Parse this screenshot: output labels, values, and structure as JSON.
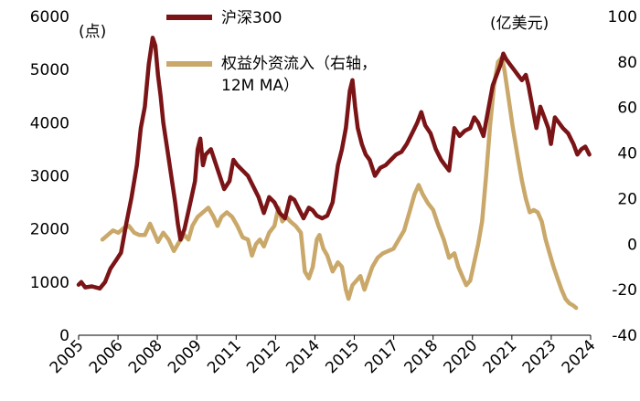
{
  "chart_data": {
    "type": "line",
    "title": "",
    "left_axis": {
      "unit": "(点)",
      "ylim": [
        0,
        6000
      ],
      "ticks": [
        "0",
        "1000",
        "2000",
        "3000",
        "4000",
        "5000",
        "6000"
      ]
    },
    "right_axis": {
      "unit": "(亿美元)",
      "ylim": [
        -40,
        100
      ],
      "ticks": [
        "-40",
        "-20",
        "0",
        "20",
        "40",
        "60",
        "80",
        "100"
      ]
    },
    "x_axis": {
      "ticks": [
        "2005",
        "2006",
        "2008",
        "2009",
        "2011",
        "2012",
        "2014",
        "2015",
        "2017",
        "2018",
        "2020",
        "2021",
        "2023",
        "2024"
      ]
    },
    "legend": {
      "placement": "top-center"
    },
    "series": [
      {
        "name": "沪深300",
        "axis": "left",
        "color": "#7b1416",
        "points": [
          [
            2005.0,
            950
          ],
          [
            2005.1,
            1000
          ],
          [
            2005.25,
            900
          ],
          [
            2005.5,
            920
          ],
          [
            2005.8,
            880
          ],
          [
            2006.0,
            1000
          ],
          [
            2006.2,
            1250
          ],
          [
            2006.4,
            1400
          ],
          [
            2006.6,
            1550
          ],
          [
            2006.8,
            2100
          ],
          [
            2007.0,
            2600
          ],
          [
            2007.2,
            3200
          ],
          [
            2007.35,
            3900
          ],
          [
            2007.5,
            4300
          ],
          [
            2007.65,
            5100
          ],
          [
            2007.8,
            5600
          ],
          [
            2007.9,
            5450
          ],
          [
            2008.0,
            4900
          ],
          [
            2008.1,
            4500
          ],
          [
            2008.2,
            4000
          ],
          [
            2008.35,
            3500
          ],
          [
            2008.5,
            3000
          ],
          [
            2008.65,
            2500
          ],
          [
            2008.75,
            2100
          ],
          [
            2008.85,
            1800
          ],
          [
            2009.0,
            2000
          ],
          [
            2009.2,
            2450
          ],
          [
            2009.4,
            2900
          ],
          [
            2009.5,
            3500
          ],
          [
            2009.6,
            3700
          ],
          [
            2009.7,
            3200
          ],
          [
            2009.8,
            3400
          ],
          [
            2010.0,
            3500
          ],
          [
            2010.2,
            3200
          ],
          [
            2010.4,
            2900
          ],
          [
            2010.5,
            2750
          ],
          [
            2010.7,
            2900
          ],
          [
            2010.85,
            3300
          ],
          [
            2011.0,
            3200
          ],
          [
            2011.2,
            3100
          ],
          [
            2011.4,
            3000
          ],
          [
            2011.6,
            2800
          ],
          [
            2011.8,
            2600
          ],
          [
            2012.0,
            2300
          ],
          [
            2012.2,
            2600
          ],
          [
            2012.4,
            2500
          ],
          [
            2012.6,
            2300
          ],
          [
            2012.8,
            2200
          ],
          [
            2013.0,
            2600
          ],
          [
            2013.15,
            2550
          ],
          [
            2013.3,
            2400
          ],
          [
            2013.5,
            2200
          ],
          [
            2013.7,
            2400
          ],
          [
            2013.85,
            2350
          ],
          [
            2014.0,
            2250
          ],
          [
            2014.2,
            2200
          ],
          [
            2014.4,
            2250
          ],
          [
            2014.6,
            2500
          ],
          [
            2014.8,
            3200
          ],
          [
            2014.95,
            3500
          ],
          [
            2015.1,
            3900
          ],
          [
            2015.25,
            4600
          ],
          [
            2015.35,
            4800
          ],
          [
            2015.45,
            4300
          ],
          [
            2015.55,
            3900
          ],
          [
            2015.7,
            3600
          ],
          [
            2015.85,
            3400
          ],
          [
            2016.0,
            3300
          ],
          [
            2016.2,
            3000
          ],
          [
            2016.4,
            3150
          ],
          [
            2016.6,
            3200
          ],
          [
            2016.8,
            3300
          ],
          [
            2017.0,
            3400
          ],
          [
            2017.2,
            3450
          ],
          [
            2017.4,
            3600
          ],
          [
            2017.6,
            3800
          ],
          [
            2017.8,
            4000
          ],
          [
            2017.95,
            4200
          ],
          [
            2018.1,
            3950
          ],
          [
            2018.3,
            3800
          ],
          [
            2018.5,
            3500
          ],
          [
            2018.7,
            3300
          ],
          [
            2018.85,
            3200
          ],
          [
            2019.0,
            3100
          ],
          [
            2019.1,
            3500
          ],
          [
            2019.2,
            3900
          ],
          [
            2019.4,
            3750
          ],
          [
            2019.6,
            3850
          ],
          [
            2019.8,
            3900
          ],
          [
            2019.95,
            4100
          ],
          [
            2020.1,
            4000
          ],
          [
            2020.3,
            3750
          ],
          [
            2020.5,
            4300
          ],
          [
            2020.65,
            4700
          ],
          [
            2020.8,
            4900
          ],
          [
            2020.95,
            5100
          ],
          [
            2021.05,
            5300
          ],
          [
            2021.15,
            5200
          ],
          [
            2021.3,
            5100
          ],
          [
            2021.45,
            5000
          ],
          [
            2021.6,
            4900
          ],
          [
            2021.75,
            4800
          ],
          [
            2021.9,
            4900
          ],
          [
            2022.0,
            4700
          ],
          [
            2022.15,
            4300
          ],
          [
            2022.3,
            3900
          ],
          [
            2022.45,
            4300
          ],
          [
            2022.6,
            4100
          ],
          [
            2022.75,
            3900
          ],
          [
            2022.85,
            3600
          ],
          [
            2023.0,
            4100
          ],
          [
            2023.15,
            4000
          ],
          [
            2023.3,
            3900
          ],
          [
            2023.5,
            3800
          ],
          [
            2023.7,
            3600
          ],
          [
            2023.85,
            3400
          ],
          [
            2024.0,
            3500
          ],
          [
            2024.15,
            3550
          ],
          [
            2024.3,
            3400
          ]
        ]
      },
      {
        "name": "权益外资流入（右轴，12M MA）",
        "axis": "right",
        "color": "#c9a86a",
        "points": [
          [
            2005.9,
            2
          ],
          [
            2006.1,
            4
          ],
          [
            2006.3,
            6
          ],
          [
            2006.5,
            5
          ],
          [
            2006.7,
            7
          ],
          [
            2006.9,
            8
          ],
          [
            2007.1,
            5
          ],
          [
            2007.3,
            4
          ],
          [
            2007.5,
            4
          ],
          [
            2007.7,
            9
          ],
          [
            2007.85,
            5
          ],
          [
            2008.0,
            1
          ],
          [
            2008.2,
            5
          ],
          [
            2008.4,
            2
          ],
          [
            2008.6,
            -3
          ],
          [
            2008.8,
            1
          ],
          [
            2009.0,
            4
          ],
          [
            2009.15,
            2
          ],
          [
            2009.3,
            8
          ],
          [
            2009.5,
            12
          ],
          [
            2009.7,
            14
          ],
          [
            2009.9,
            16
          ],
          [
            2010.1,
            12
          ],
          [
            2010.25,
            8
          ],
          [
            2010.4,
            12
          ],
          [
            2010.6,
            14
          ],
          [
            2010.8,
            12
          ],
          [
            2011.0,
            8
          ],
          [
            2011.2,
            3
          ],
          [
            2011.4,
            2
          ],
          [
            2011.55,
            -5
          ],
          [
            2011.7,
            0
          ],
          [
            2011.85,
            2
          ],
          [
            2012.0,
            -1
          ],
          [
            2012.2,
            5
          ],
          [
            2012.4,
            8
          ],
          [
            2012.55,
            16
          ],
          [
            2012.7,
            10
          ],
          [
            2012.85,
            12
          ],
          [
            2013.0,
            10
          ],
          [
            2013.2,
            8
          ],
          [
            2013.4,
            5
          ],
          [
            2013.55,
            -12
          ],
          [
            2013.7,
            -15
          ],
          [
            2013.85,
            -10
          ],
          [
            2014.0,
            2
          ],
          [
            2014.1,
            4
          ],
          [
            2014.25,
            -2
          ],
          [
            2014.4,
            -5
          ],
          [
            2014.6,
            -12
          ],
          [
            2014.8,
            -8
          ],
          [
            2014.95,
            -10
          ],
          [
            2015.1,
            -20
          ],
          [
            2015.2,
            -24
          ],
          [
            2015.35,
            -18
          ],
          [
            2015.5,
            -16
          ],
          [
            2015.65,
            -14
          ],
          [
            2015.8,
            -20
          ],
          [
            2015.95,
            -15
          ],
          [
            2016.1,
            -10
          ],
          [
            2016.3,
            -6
          ],
          [
            2016.5,
            -4
          ],
          [
            2016.7,
            -3
          ],
          [
            2016.9,
            -2
          ],
          [
            2017.1,
            2
          ],
          [
            2017.3,
            6
          ],
          [
            2017.5,
            14
          ],
          [
            2017.7,
            22
          ],
          [
            2017.85,
            26
          ],
          [
            2018.0,
            22
          ],
          [
            2018.2,
            18
          ],
          [
            2018.4,
            15
          ],
          [
            2018.6,
            8
          ],
          [
            2018.8,
            2
          ],
          [
            2019.0,
            -6
          ],
          [
            2019.2,
            -4
          ],
          [
            2019.35,
            -10
          ],
          [
            2019.5,
            -14
          ],
          [
            2019.65,
            -18
          ],
          [
            2019.8,
            -16
          ],
          [
            2019.95,
            -8
          ],
          [
            2020.1,
            0
          ],
          [
            2020.25,
            10
          ],
          [
            2020.4,
            30
          ],
          [
            2020.55,
            52
          ],
          [
            2020.7,
            70
          ],
          [
            2020.85,
            80
          ],
          [
            2021.0,
            82
          ],
          [
            2021.1,
            76
          ],
          [
            2021.25,
            64
          ],
          [
            2021.4,
            52
          ],
          [
            2021.6,
            38
          ],
          [
            2021.75,
            28
          ],
          [
            2021.9,
            20
          ],
          [
            2022.05,
            14
          ],
          [
            2022.2,
            15
          ],
          [
            2022.35,
            14
          ],
          [
            2022.5,
            10
          ],
          [
            2022.65,
            2
          ],
          [
            2022.8,
            -4
          ],
          [
            2022.95,
            -10
          ],
          [
            2023.1,
            -15
          ],
          [
            2023.25,
            -20
          ],
          [
            2023.4,
            -24
          ],
          [
            2023.55,
            -26
          ],
          [
            2023.7,
            -27
          ],
          [
            2023.8,
            -28
          ]
        ]
      }
    ]
  }
}
